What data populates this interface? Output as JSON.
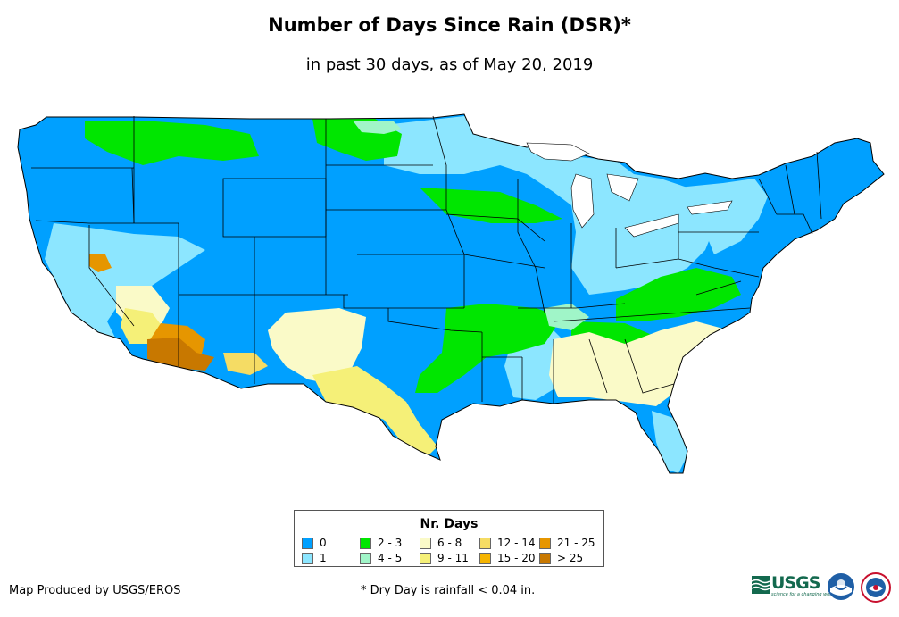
{
  "title": "Number of Days Since Rain (DSR)*",
  "subtitle": "in past 30 days, as of May 20, 2019",
  "legend": {
    "title": "Nr. Days",
    "items": [
      {
        "label": "0",
        "color": "#00a0ff"
      },
      {
        "label": "1",
        "color": "#8ce6ff"
      },
      {
        "label": "2 - 3",
        "color": "#00e600"
      },
      {
        "label": "4 - 5",
        "color": "#a0f5c8"
      },
      {
        "label": "6 - 8",
        "color": "#fafac8"
      },
      {
        "label": "9 - 11",
        "color": "#f5f078"
      },
      {
        "label": "12 - 14",
        "color": "#f5dc64"
      },
      {
        "label": "15 - 20",
        "color": "#f5b400"
      },
      {
        "label": "21 - 25",
        "color": "#e69600"
      },
      {
        "label": "> 25",
        "color": "#c87800"
      }
    ]
  },
  "credit": "Map Produced by USGS/EROS",
  "footnote": "* Dry Day is rainfall < 0.04 in.",
  "logos": {
    "usgs": "USGS",
    "usgs_tagline": "science for a changing world",
    "noaa_icon": "noaa-logo-icon",
    "nws_icon": "nws-logo-icon"
  },
  "map": {
    "region": "Contiguous United States",
    "boundary_color": "#000000",
    "water_color": "#ffffff"
  }
}
